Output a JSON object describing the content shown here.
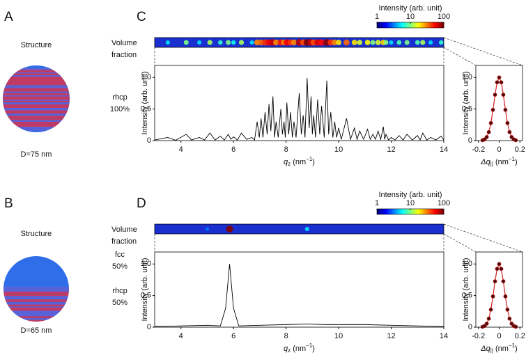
{
  "panels": [
    {
      "label": "A",
      "structure_heading": "Structure",
      "fraction_heading": [
        "Volume",
        "fraction"
      ],
      "phases": [
        {
          "name": "rhcp",
          "fraction": "100%"
        }
      ],
      "diameter": "D=75 nm"
    },
    {
      "label": "B",
      "structure_heading": "Structure",
      "fraction_heading": [
        "Volume",
        "fraction"
      ],
      "phases": [
        {
          "name": "fcc",
          "fraction": "50%"
        },
        {
          "name": "rhcp",
          "fraction": "50%"
        }
      ],
      "diameter": "D=65 nm"
    }
  ],
  "chart_data": [
    {
      "type": "line",
      "panel": "C",
      "ylabel": "Intensity (arb. unit)",
      "xlabel": [
        "q",
        "z",
        " (nm",
        "−1",
        ")"
      ],
      "x": [
        3.0,
        3.5,
        3.8,
        4.2,
        4.4,
        4.7,
        4.9,
        5.1,
        5.3,
        5.5,
        5.65,
        5.8,
        5.9,
        6.0,
        6.15,
        6.3,
        6.5,
        6.7,
        6.8,
        6.9,
        6.98,
        7.05,
        7.12,
        7.2,
        7.28,
        7.35,
        7.42,
        7.5,
        7.56,
        7.62,
        7.7,
        7.8,
        7.86,
        7.92,
        7.97,
        8.03,
        8.1,
        8.17,
        8.24,
        8.3,
        8.38,
        8.5,
        8.58,
        8.65,
        8.72,
        8.8,
        8.88,
        8.95,
        9.0,
        9.05,
        9.12,
        9.2,
        9.28,
        9.35,
        9.45,
        9.55,
        9.62,
        9.7,
        9.78,
        9.85,
        9.92,
        10.0,
        10.1,
        10.3,
        10.45,
        10.6,
        10.7,
        10.8,
        10.95,
        11.1,
        11.2,
        11.3,
        11.4,
        11.5,
        11.6,
        11.7,
        11.75,
        11.8,
        11.9,
        12.0,
        12.15,
        12.3,
        12.45,
        12.6,
        12.8,
        13.0,
        13.1,
        13.2,
        13.35,
        13.5,
        13.7,
        13.9,
        14.0
      ],
      "series": [
        {
          "color": "#000000",
          "values": [
            0.01,
            0.05,
            0.005,
            0.1,
            0.01,
            0.05,
            0.01,
            0.12,
            0.01,
            0.07,
            0.01,
            0.1,
            0.02,
            0.06,
            0.01,
            0.12,
            0.02,
            0.05,
            0.01,
            0.3,
            0.05,
            0.35,
            0.05,
            0.45,
            0.1,
            0.58,
            0.15,
            0.7,
            0.05,
            0.3,
            0.05,
            0.5,
            0.1,
            0.3,
            0.05,
            0.6,
            0.1,
            0.45,
            0.05,
            0.3,
            0.05,
            0.75,
            0.1,
            0.4,
            0.05,
            0.99,
            0.2,
            0.7,
            0.1,
            0.4,
            0.05,
            0.65,
            0.1,
            0.55,
            0.05,
            0.95,
            0.1,
            0.45,
            0.05,
            0.3,
            0.05,
            0.2,
            0.02,
            0.35,
            0.02,
            0.2,
            0.02,
            0.15,
            0.02,
            0.18,
            0.02,
            0.1,
            0.02,
            0.15,
            0.02,
            0.22,
            0.02,
            0.1,
            0.01,
            0.05,
            0.01,
            0.08,
            0.01,
            0.1,
            0.01,
            0.08,
            0.01,
            0.12,
            0.01,
            0.05,
            0.01,
            0.07,
            0.01
          ]
        }
      ],
      "xlim": [
        3,
        14
      ],
      "ylim": [
        0,
        1.19
      ],
      "xticks": [
        4,
        6,
        8,
        10,
        12,
        14
      ],
      "yticks": [
        0,
        0.5,
        {
          "value": 1,
          "label": "1.0"
        }
      ],
      "colorbar": {
        "title": "Intensity (arb. unit)",
        "lim": [
          1,
          100
        ],
        "ticks": [
          1,
          10,
          100
        ],
        "log": true
      }
    },
    {
      "type": "line",
      "markers": true,
      "ylabel": "Intensity (arb. unit)",
      "xlabel": [
        "Δq",
        "||",
        " (nm",
        "−1",
        ")"
      ],
      "x": [
        -0.16,
        -0.14,
        -0.12,
        -0.1,
        -0.08,
        -0.06,
        -0.04,
        -0.02,
        0,
        0.02,
        0.04,
        0.06,
        0.08,
        0.1,
        0.12,
        0.14,
        0.16
      ],
      "series": [
        {
          "color": "#d62020",
          "marker_color": "#4a0808",
          "values": [
            0.006,
            0.02,
            0.056,
            0.135,
            0.278,
            0.487,
            0.726,
            0.923,
            1,
            0.923,
            0.726,
            0.487,
            0.278,
            0.135,
            0.056,
            0.02,
            0.006
          ]
        }
      ],
      "xlim": [
        -0.225,
        0.225
      ],
      "ylim": [
        0,
        1.19
      ],
      "xticks": [
        -0.2,
        0,
        0.2
      ],
      "yticks": [
        0,
        0.5,
        {
          "value": 1,
          "label": "1.0"
        }
      ]
    },
    {
      "type": "line",
      "panel": "D",
      "ylabel": "Intensity (arb. unit)",
      "xlabel": [
        "q",
        "z",
        " (nm",
        "−1",
        ")"
      ],
      "x": [
        3.0,
        4.0,
        5.0,
        5.5,
        5.7,
        5.85,
        6.0,
        6.2,
        7.0,
        8.0,
        8.8,
        9.5,
        10.0,
        11.0,
        12.0,
        13.0,
        14.0
      ],
      "series": [
        {
          "color": "#000000",
          "values": [
            0.01,
            0.02,
            0.03,
            0.02,
            0.3,
            1,
            0.3,
            0.02,
            0.03,
            0.04,
            0.05,
            0.04,
            0.04,
            0.04,
            0.03,
            0.02,
            0.01
          ]
        }
      ],
      "xlim": [
        3,
        14
      ],
      "ylim": [
        0,
        1.19
      ],
      "xticks": [
        4,
        6,
        8,
        10,
        12,
        14
      ],
      "yticks": [
        0,
        0.5,
        {
          "value": 1,
          "label": "1.0"
        }
      ],
      "colorbar": {
        "title": "Intensity (arb. unit)",
        "lim": [
          1,
          100
        ],
        "ticks": [
          1,
          10,
          100
        ],
        "log": true
      }
    },
    {
      "type": "line",
      "markers": true,
      "ylabel": "Intensity (arb. unit)",
      "xlabel": [
        "Δq",
        "||",
        " (nm",
        "−1",
        ")"
      ],
      "x": [
        -0.16,
        -0.14,
        -0.12,
        -0.1,
        -0.08,
        -0.06,
        -0.04,
        -0.02,
        0,
        0.02,
        0.04,
        0.06,
        0.08,
        0.1,
        0.12,
        0.14,
        0.16
      ],
      "series": [
        {
          "color": "#d62020",
          "marker_color": "#4a0808",
          "values": [
            0.006,
            0.02,
            0.056,
            0.135,
            0.278,
            0.487,
            0.726,
            0.923,
            1,
            0.923,
            0.726,
            0.487,
            0.278,
            0.135,
            0.056,
            0.02,
            0.006
          ]
        }
      ],
      "xlim": [
        -0.225,
        0.225
      ],
      "ylim": [
        0,
        1.19
      ],
      "xticks": [
        -0.2,
        0,
        0.2
      ],
      "yticks": [
        0,
        0.5,
        {
          "value": 1,
          "label": "1.0"
        }
      ]
    }
  ]
}
